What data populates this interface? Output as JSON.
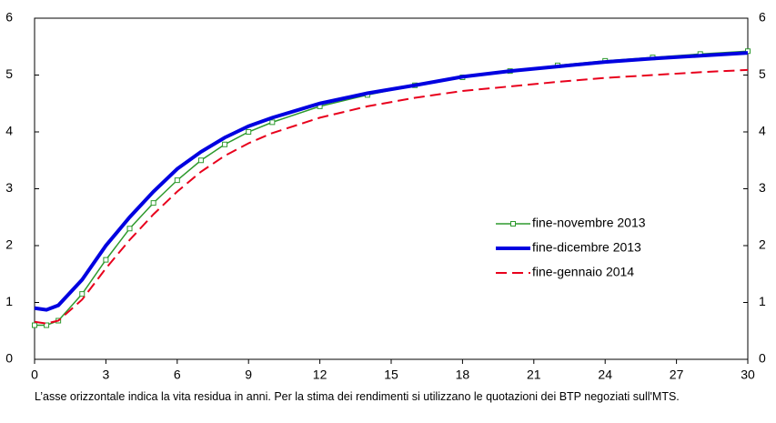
{
  "chart_data": {
    "type": "line",
    "note": "L’asse orizzontale indica la vita residua in anni. Per la stima dei rendimenti si utilizzano le quotazioni dei BTP negoziati sull'MTS.",
    "x": [
      0,
      0.5,
      1,
      2,
      3,
      4,
      5,
      6,
      7,
      8,
      9,
      10,
      12,
      14,
      16,
      18,
      20,
      22,
      24,
      26,
      28,
      30
    ],
    "series": [
      {
        "name": "fine-novembre 2013",
        "color": "#2e9a2e",
        "style": "markers",
        "values": [
          0.6,
          0.6,
          0.68,
          1.15,
          1.75,
          2.3,
          2.75,
          3.15,
          3.5,
          3.78,
          4.0,
          4.17,
          4.45,
          4.65,
          4.82,
          4.96,
          5.07,
          5.17,
          5.25,
          5.31,
          5.37,
          5.42
        ]
      },
      {
        "name": "fine-dicembre 2013",
        "color": "#0000e0",
        "style": "solid",
        "values": [
          0.9,
          0.87,
          0.95,
          1.4,
          2.0,
          2.5,
          2.95,
          3.35,
          3.65,
          3.9,
          4.1,
          4.25,
          4.5,
          4.68,
          4.82,
          4.97,
          5.07,
          5.15,
          5.23,
          5.29,
          5.34,
          5.39
        ]
      },
      {
        "name": "fine-gennaio 2014",
        "color": "#e8001c",
        "style": "dashed",
        "values": [
          0.66,
          0.63,
          0.68,
          1.05,
          1.6,
          2.1,
          2.55,
          2.95,
          3.3,
          3.58,
          3.8,
          3.98,
          4.25,
          4.45,
          4.6,
          4.72,
          4.8,
          4.88,
          4.95,
          5.0,
          5.05,
          5.09
        ]
      }
    ],
    "xlim": [
      0,
      30
    ],
    "xticks": [
      0,
      3,
      6,
      9,
      12,
      15,
      18,
      21,
      24,
      27,
      30
    ],
    "ylim": [
      0,
      6
    ],
    "yticks": [
      0,
      1,
      2,
      3,
      4,
      5,
      6
    ],
    "y2lim": [
      0,
      6
    ],
    "y2ticks": [
      0,
      1,
      2,
      3,
      4,
      5,
      6
    ],
    "legend": "center-right",
    "grid": false
  }
}
